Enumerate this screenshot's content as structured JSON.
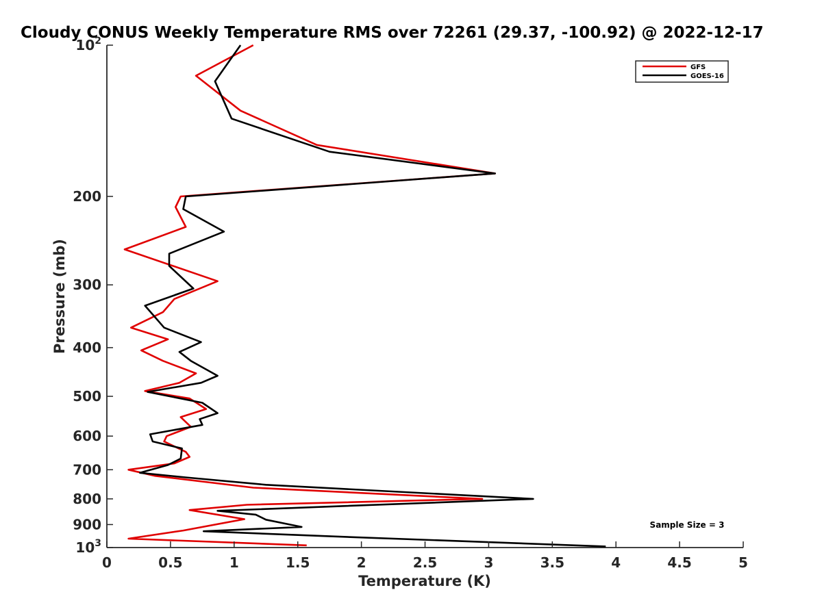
{
  "chart_data": {
    "type": "line",
    "title": "Cloudy CONUS Weekly Temperature RMS over 72261 (29.37, -100.92) @ 2022-12-17",
    "xlabel": "Temperature (K)",
    "ylabel": "Pressure (mb)",
    "xlim": [
      0,
      5
    ],
    "ylim": [
      100,
      1000
    ],
    "y_scale": "log",
    "y_reversed": true,
    "x_ticks": [
      0,
      0.5,
      1,
      1.5,
      2,
      2.5,
      3,
      3.5,
      4,
      4.5,
      5
    ],
    "x_tick_labels": [
      "0",
      "0.5",
      "1",
      "1.5",
      "2",
      "2.5",
      "3",
      "3.5",
      "4",
      "4.5",
      "5"
    ],
    "y_ticks": [
      100,
      200,
      300,
      400,
      500,
      600,
      700,
      800,
      900,
      1000
    ],
    "y_tick_labels": [
      {
        "base": "10",
        "exp": "2"
      },
      {
        "base": "200",
        "exp": ""
      },
      {
        "base": "300",
        "exp": ""
      },
      {
        "base": "400",
        "exp": ""
      },
      {
        "base": "500",
        "exp": ""
      },
      {
        "base": "600",
        "exp": ""
      },
      {
        "base": "700",
        "exp": ""
      },
      {
        "base": "800",
        "exp": ""
      },
      {
        "base": "900",
        "exp": ""
      },
      {
        "base": "10",
        "exp": "3"
      }
    ],
    "grid": false,
    "legend_position": "top-right",
    "annotation": "Sample Size = 3",
    "series": [
      {
        "name": "GFS",
        "color": "#e00000",
        "points": [
          [
            1.15,
            100
          ],
          [
            0.7,
            115
          ],
          [
            1.05,
            135
          ],
          [
            1.65,
            158
          ],
          [
            3.05,
            180
          ],
          [
            0.58,
            200
          ],
          [
            0.54,
            210
          ],
          [
            0.62,
            230
          ],
          [
            0.14,
            255
          ],
          [
            0.87,
            295
          ],
          [
            0.53,
            320
          ],
          [
            0.44,
            340
          ],
          [
            0.19,
            365
          ],
          [
            0.48,
            385
          ],
          [
            0.27,
            405
          ],
          [
            0.44,
            425
          ],
          [
            0.7,
            450
          ],
          [
            0.57,
            470
          ],
          [
            0.3,
            488
          ],
          [
            0.65,
            505
          ],
          [
            0.78,
            530
          ],
          [
            0.58,
            550
          ],
          [
            0.66,
            575
          ],
          [
            0.47,
            600
          ],
          [
            0.45,
            615
          ],
          [
            0.62,
            645
          ],
          [
            0.65,
            660
          ],
          [
            0.53,
            680
          ],
          [
            0.17,
            700
          ],
          [
            0.38,
            720
          ],
          [
            1.15,
            760
          ],
          [
            2.95,
            800
          ],
          [
            1.1,
            822
          ],
          [
            0.65,
            842
          ],
          [
            1.08,
            878
          ],
          [
            0.6,
            925
          ],
          [
            0.17,
            960
          ],
          [
            1.57,
            990
          ]
        ]
      },
      {
        "name": "GOES-16",
        "color": "#000000",
        "points": [
          [
            1.05,
            100
          ],
          [
            0.85,
            118
          ],
          [
            0.98,
            140
          ],
          [
            1.75,
            163
          ],
          [
            3.05,
            180
          ],
          [
            0.62,
            200
          ],
          [
            0.6,
            212
          ],
          [
            0.92,
            235
          ],
          [
            0.49,
            260
          ],
          [
            0.49,
            275
          ],
          [
            0.68,
            305
          ],
          [
            0.3,
            330
          ],
          [
            0.45,
            365
          ],
          [
            0.74,
            390
          ],
          [
            0.57,
            408
          ],
          [
            0.66,
            425
          ],
          [
            0.87,
            455
          ],
          [
            0.74,
            470
          ],
          [
            0.32,
            490
          ],
          [
            0.75,
            515
          ],
          [
            0.87,
            540
          ],
          [
            0.73,
            555
          ],
          [
            0.75,
            570
          ],
          [
            0.34,
            595
          ],
          [
            0.36,
            615
          ],
          [
            0.59,
            635
          ],
          [
            0.58,
            665
          ],
          [
            0.48,
            685
          ],
          [
            0.26,
            710
          ],
          [
            0.62,
            725
          ],
          [
            1.25,
            750
          ],
          [
            3.35,
            800
          ],
          [
            0.87,
            845
          ],
          [
            1.17,
            860
          ],
          [
            1.25,
            880
          ],
          [
            1.53,
            910
          ],
          [
            0.76,
            928
          ],
          [
            1.76,
            950
          ],
          [
            3.92,
            995
          ]
        ]
      }
    ]
  }
}
